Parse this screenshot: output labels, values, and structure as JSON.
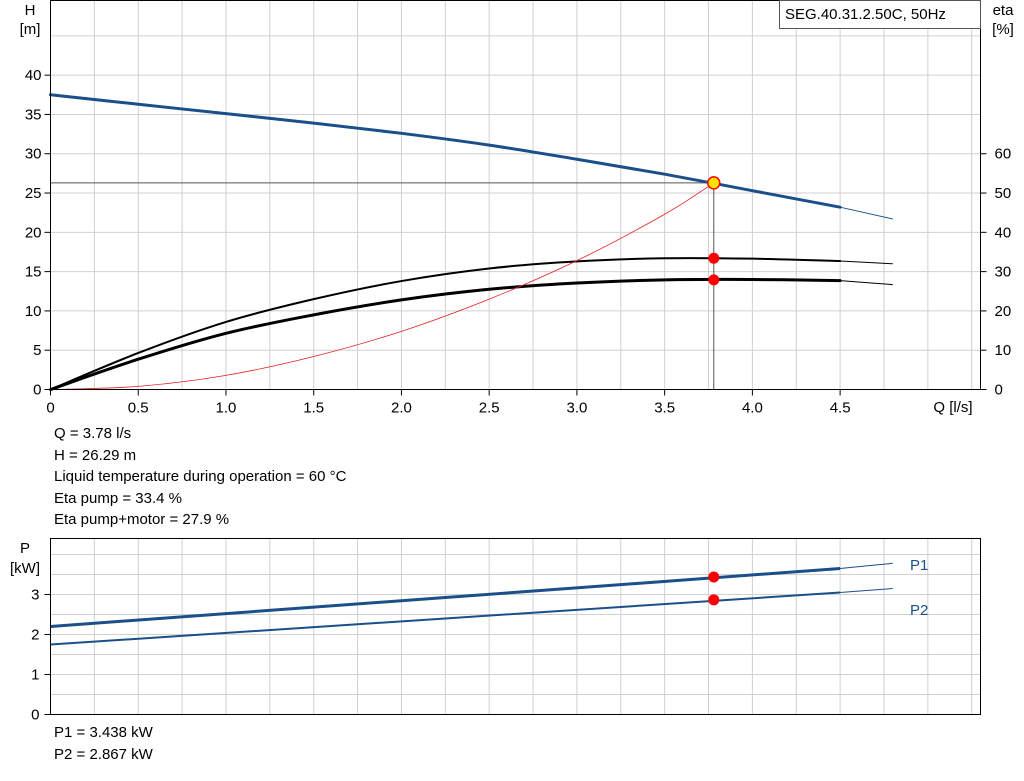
{
  "colors": {
    "curve": "#1a4f8a",
    "black": "#000000",
    "red": "#e02020",
    "marker": "#ff0000",
    "operating_fill": "#ffe000",
    "grid": "#d0d0d0"
  },
  "legend_box": "SEG.40.31.2.50C, 50Hz",
  "top_info": [
    "Q = 3.78 l/s",
    "H = 26.29 m",
    "Liquid temperature during operation = 60 °C",
    "Eta pump = 33.4 %",
    "Eta pump+motor = 27.9 %"
  ],
  "bottom_info": [
    "P1 = 3.438 kW",
    "P2 = 2.867 kW"
  ],
  "chart_data": [
    {
      "type": "line",
      "title": "SEG.40.31.2.50C, 50Hz",
      "xlabel": "Q [l/s]",
      "ylabel_left": [
        "H",
        "[m]"
      ],
      "ylabel_right": [
        "eta",
        "[%]"
      ],
      "xlim": [
        0,
        5.3
      ],
      "ylim_left": [
        0,
        49.5
      ],
      "ylim_right": [
        0,
        99
      ],
      "x_ticks": [
        "0",
        "0.5",
        "1.0",
        "1.5",
        "2.0",
        "2.5",
        "3.0",
        "3.5",
        "4.0",
        "4.5"
      ],
      "y_ticks_left": [
        "0",
        "5",
        "10",
        "15",
        "20",
        "25",
        "30",
        "35",
        "40"
      ],
      "y_ticks_right": [
        "0",
        "10",
        "20",
        "30",
        "40",
        "50",
        "60"
      ],
      "grid": true,
      "series": [
        {
          "axis": "left",
          "style": "head",
          "x": [
            0,
            0.5,
            1.0,
            1.5,
            2.0,
            2.5,
            3.0,
            3.5,
            4.0,
            4.5,
            4.8
          ],
          "y": [
            37.5,
            36.3,
            35.1,
            33.9,
            32.6,
            31.1,
            29.3,
            27.4,
            25.3,
            23.2,
            21.7
          ],
          "solid_until": 4.5
        },
        {
          "axis": "right",
          "style": "eta_pump",
          "x": [
            0,
            0.5,
            1.0,
            1.5,
            2.0,
            2.5,
            3.0,
            3.5,
            4.0,
            4.5,
            4.8
          ],
          "y": [
            0,
            9.3,
            17.2,
            23.0,
            27.6,
            30.8,
            32.6,
            33.4,
            33.3,
            32.7,
            32.0
          ],
          "solid_until": 4.5
        },
        {
          "axis": "right",
          "style": "eta_total",
          "x": [
            0,
            0.5,
            1.0,
            1.5,
            2.0,
            2.5,
            3.0,
            3.5,
            4.0,
            4.5,
            4.8
          ],
          "y": [
            0,
            7.7,
            14.3,
            19.0,
            22.8,
            25.5,
            27.1,
            27.9,
            28.0,
            27.7,
            26.7
          ],
          "solid_until": 4.5
        },
        {
          "axis": "left",
          "style": "system",
          "x": [
            0,
            0.5,
            1.0,
            1.5,
            2.0,
            2.5,
            3.0,
            3.5,
            3.78
          ],
          "y": [
            0,
            0.4,
            1.8,
            4.2,
            7.4,
            11.5,
            16.4,
            22.3,
            26.29
          ]
        }
      ],
      "operating_point": {
        "x": 3.78,
        "h": 26.29,
        "eta_pump": 33.4,
        "eta_total": 27.9
      }
    },
    {
      "type": "line",
      "xlabel": "",
      "ylabel": [
        "P",
        "[kW]"
      ],
      "xlim": [
        0,
        5.3
      ],
      "ylim": [
        0,
        4.4
      ],
      "y_ticks": [
        "0",
        "1",
        "2",
        "3"
      ],
      "grid": true,
      "series": [
        {
          "name": "P1",
          "x": [
            0,
            4.5,
            4.8
          ],
          "y": [
            2.2,
            3.65,
            3.78
          ],
          "solid_until": 4.5
        },
        {
          "name": "P2",
          "x": [
            0,
            4.5,
            4.8
          ],
          "y": [
            1.75,
            3.05,
            3.15
          ],
          "solid_until": 4.5
        }
      ],
      "operating_point": {
        "x": 3.78,
        "p1": 3.438,
        "p2": 2.867
      }
    }
  ]
}
